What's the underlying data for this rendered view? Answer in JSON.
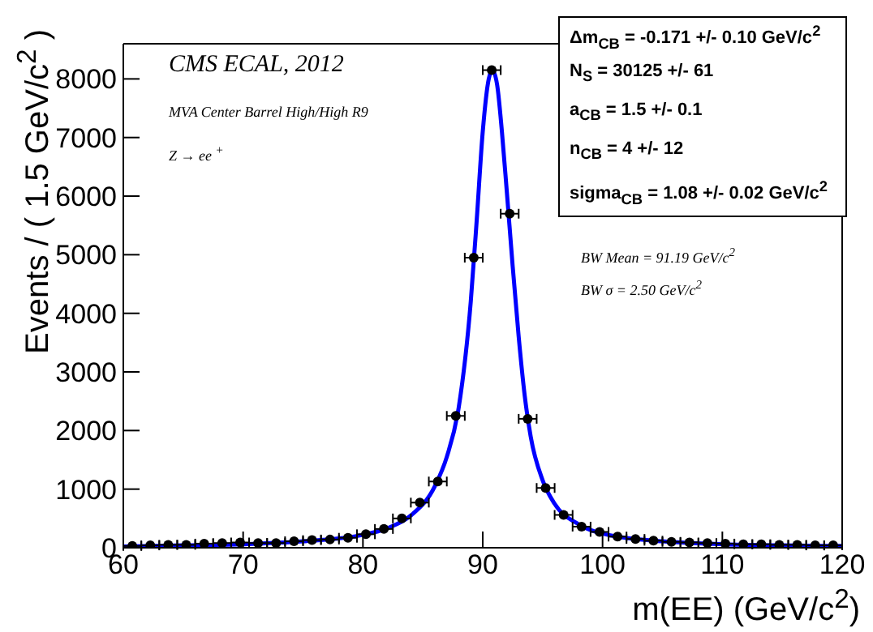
{
  "chart_data": {
    "type": "scatter",
    "xlabel": "m(EE) (GeV/c$^{2}$)",
    "ylabel": "Events / ( 1.5 GeV/c$^{2}$ )",
    "xlim": [
      60,
      120
    ],
    "xticks": [
      60,
      70,
      80,
      90,
      100,
      110,
      120
    ],
    "ylim": [
      0,
      8600
    ],
    "yticks": [
      0,
      1000,
      2000,
      3000,
      4000,
      5000,
      6000,
      7000,
      8000
    ],
    "grid": false,
    "marker": "circle",
    "series": [
      {
        "color": "#000000",
        "x": [
          60.75,
          62.25,
          63.75,
          65.25,
          66.75,
          68.25,
          69.75,
          71.25,
          72.75,
          74.25,
          75.75,
          77.25,
          78.75,
          80.25,
          81.75,
          83.25,
          84.75,
          86.25,
          87.75,
          89.25,
          90.75,
          92.25,
          93.75,
          95.25,
          96.75,
          98.25,
          99.75,
          101.25,
          102.75,
          104.25,
          105.75,
          107.25,
          108.75,
          110.25,
          111.75,
          113.25,
          114.75,
          116.25,
          117.75,
          119.25
        ],
        "values": [
          30,
          40,
          50,
          50,
          70,
          80,
          90,
          80,
          80,
          110,
          130,
          140,
          170,
          230,
          320,
          500,
          770,
          1130,
          2250,
          4950,
          8150,
          5700,
          2200,
          1020,
          560,
          360,
          270,
          190,
          150,
          120,
          100,
          90,
          80,
          70,
          60,
          60,
          50,
          50,
          40,
          40
        ],
        "xerrors": [
          0.75,
          0.75,
          0.75,
          0.75,
          0.75,
          0.75,
          0.75,
          0.75,
          0.75,
          0.75,
          0.75,
          0.75,
          0.75,
          0.75,
          0.75,
          0.75,
          0.75,
          0.75,
          0.75,
          0.75,
          0.75,
          0.75,
          0.75,
          0.75,
          0.75,
          0.75,
          0.75,
          0.75,
          0.75,
          0.75,
          0.75,
          0.75,
          0.75,
          0.75,
          0.75,
          0.75,
          0.75,
          0.75,
          0.75,
          0.75
        ]
      },
      {
        "type": "line",
        "color": "#0000ff",
        "marker": "none",
        "x": [
          60,
          65,
          70,
          75,
          80,
          82,
          84,
          86,
          87,
          88,
          89,
          89.5,
          90,
          90.5,
          90.8,
          91.2,
          91.6,
          92,
          92.5,
          93,
          93.5,
          94,
          95,
          96,
          98,
          100,
          105,
          110,
          115,
          120
        ],
        "values": [
          20,
          40,
          60,
          110,
          220,
          330,
          550,
          1050,
          1550,
          2400,
          4200,
          5600,
          7100,
          8000,
          8150,
          7900,
          7100,
          6100,
          4800,
          3600,
          2600,
          1900,
          1150,
          750,
          400,
          240,
          110,
          60,
          40,
          30
        ]
      }
    ],
    "annotations": [
      "CMS ECAL, 2012",
      "MVA Center Barrel High/High R9",
      "Z → ee $^{+}$",
      "Δm$_{CB}$ = -0.171 +/- 0.10 GeV/c$^{2}$",
      "N$_{S}$ =  30125 +/- 61",
      "a$_{CB}$ =  1.5 +/- 0.1",
      "n$_{CB}$ =  4 +/- 12",
      "sigma$_{CB}$ =  1.08 +/- 0.02 GeV/c$^{2}$",
      "BW Mean = 91.19 GeV/c$^{2}$",
      "BW  σ = 2.50 GeV/c$^{2}$"
    ]
  }
}
